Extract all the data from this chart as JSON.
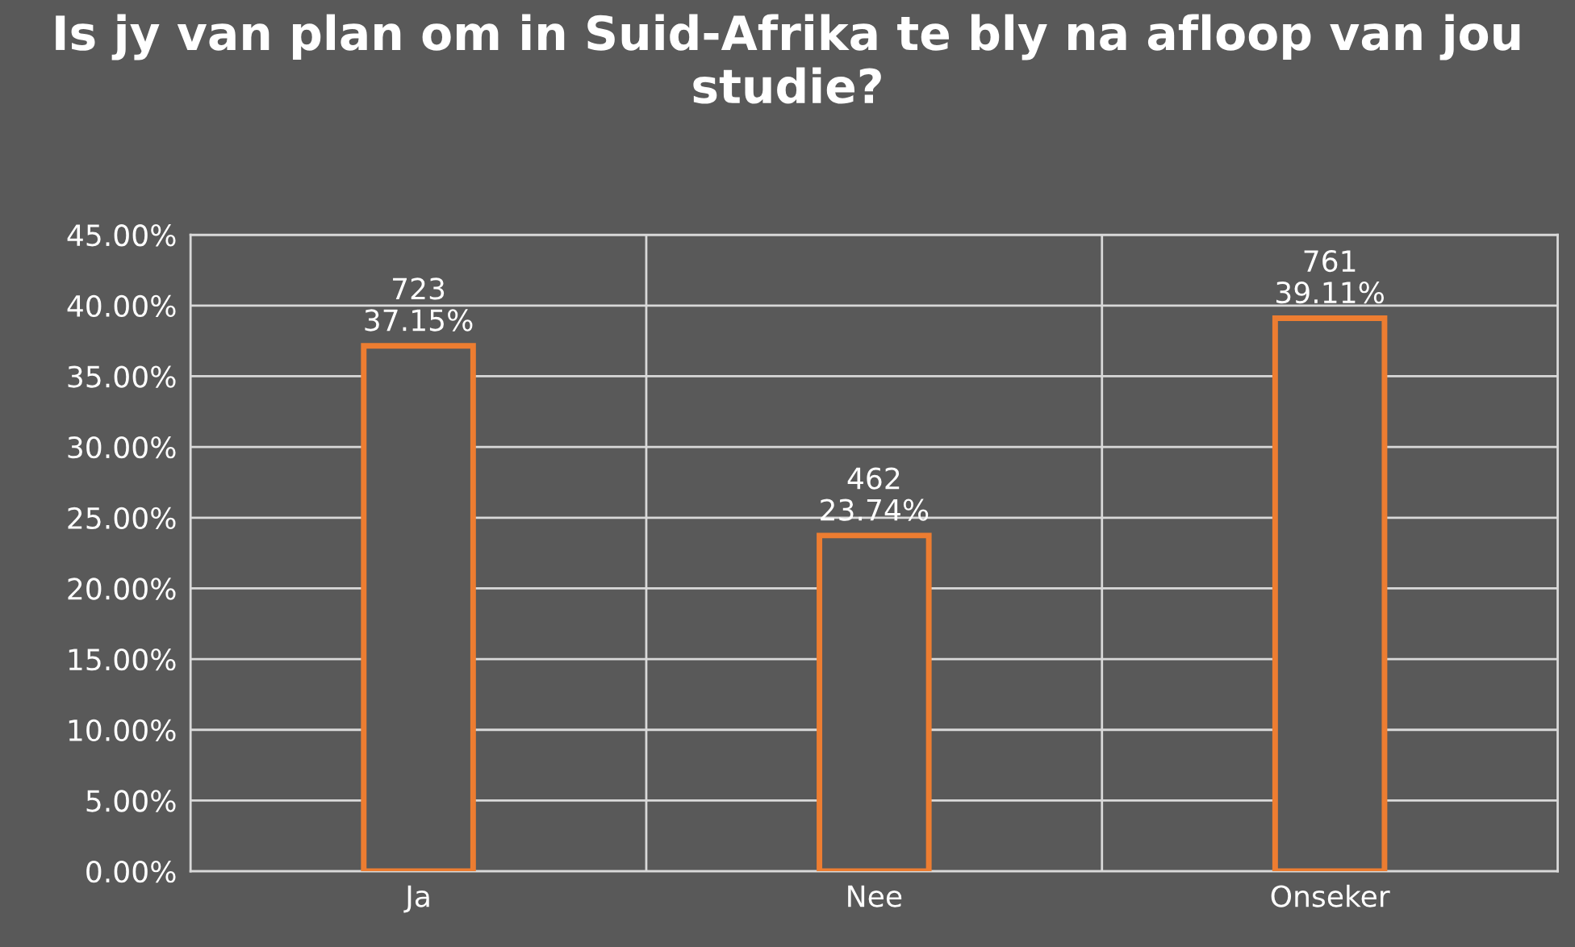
{
  "chart_data": {
    "type": "bar",
    "title": "Is jy van plan om in Suid-Afrika te bly na afloop van jou studie?",
    "categories": [
      "Ja",
      "Nee",
      "Onseker"
    ],
    "values": [
      37.15,
      23.74,
      39.11
    ],
    "value_labels": [
      "723\n37.15%",
      "462\n23.74%",
      "761\n39.11%"
    ],
    "color": "#ed7d31",
    "ylim": [
      0,
      45
    ],
    "yticks": [
      {
        "value": 0,
        "label": "0.00%"
      },
      {
        "value": 5,
        "label": "5.00%"
      },
      {
        "value": 10,
        "label": "10.00%"
      },
      {
        "value": 15,
        "label": "15.00%"
      },
      {
        "value": 20,
        "label": "20.00%"
      },
      {
        "value": 25,
        "label": "25.00%"
      },
      {
        "value": 30,
        "label": "30.00%"
      },
      {
        "value": 35,
        "label": "35.00%"
      },
      {
        "value": 40,
        "label": "40.00%"
      },
      {
        "value": 45,
        "label": "45.00%"
      }
    ],
    "grid": true
  }
}
